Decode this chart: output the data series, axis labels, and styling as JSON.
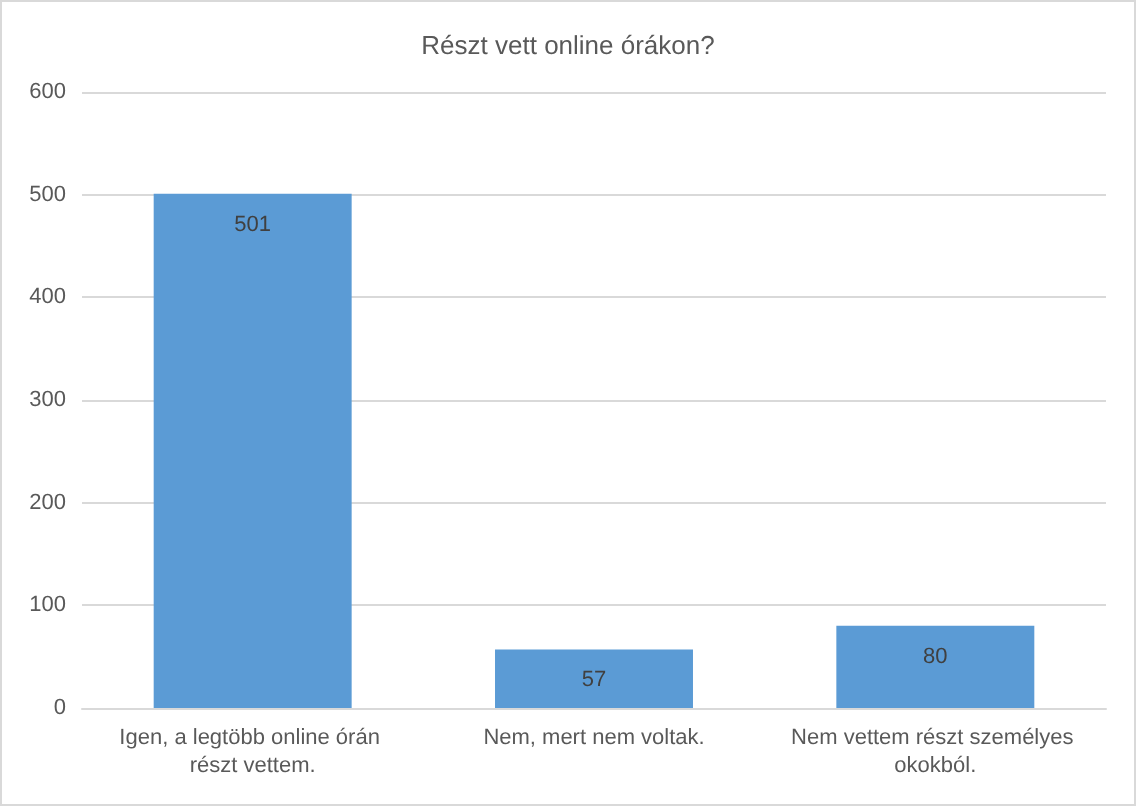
{
  "chart_data": {
    "type": "bar",
    "title": "Részt vett online órákon?",
    "categories": [
      "Igen, a legtöbb online órán részt vettem.",
      "Nem, mert nem voltak.",
      "Nem vettem részt személyes okokból."
    ],
    "values": [
      501,
      57,
      80
    ],
    "color": "#5b9bd5",
    "ylim": [
      0,
      600
    ],
    "yticks": [
      0,
      100,
      200,
      300,
      400,
      500,
      600
    ],
    "grid": "y",
    "data_labels": true
  }
}
